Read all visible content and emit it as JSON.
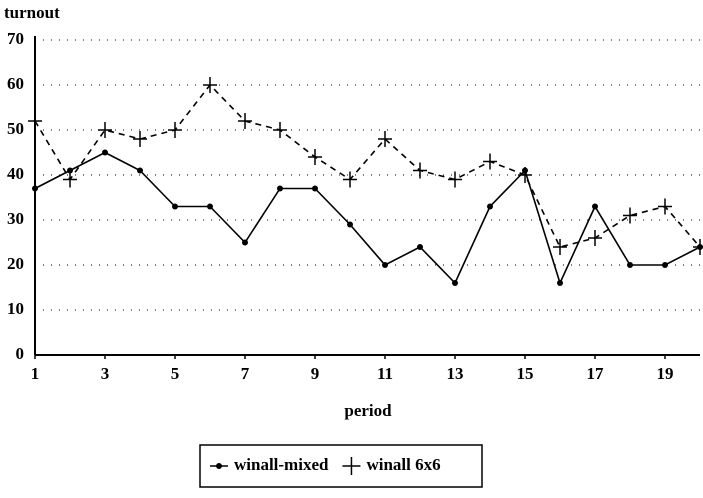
{
  "chart_data": {
    "type": "line",
    "ylabel": "turnout",
    "xlabel": "period",
    "x": [
      1,
      2,
      3,
      4,
      5,
      6,
      7,
      8,
      9,
      10,
      11,
      12,
      13,
      14,
      15,
      16,
      17,
      18,
      19,
      20
    ],
    "series": [
      {
        "name": "winall-mixed",
        "color": "#000000",
        "style": "solid",
        "marker": "dot",
        "values": [
          37,
          41,
          45,
          41,
          33,
          33,
          25,
          37,
          37,
          29,
          20,
          24,
          16,
          33,
          41,
          16,
          33,
          20,
          20,
          24
        ]
      },
      {
        "name": "winall 6x6",
        "color": "#000000",
        "style": "dashed",
        "marker": "plus",
        "values": [
          52,
          39,
          50,
          48,
          50,
          60,
          52,
          50,
          44,
          39,
          48,
          41,
          39,
          43,
          40,
          24,
          26,
          31,
          33,
          24
        ]
      }
    ],
    "xlim": [
      1,
      20
    ],
    "xticks": [
      1,
      3,
      5,
      7,
      9,
      11,
      13,
      15,
      17,
      19
    ],
    "ylim": [
      0,
      70
    ],
    "yticks": [
      0,
      10,
      20,
      30,
      40,
      50,
      60,
      70
    ],
    "grid": true,
    "legend": "bottom"
  }
}
